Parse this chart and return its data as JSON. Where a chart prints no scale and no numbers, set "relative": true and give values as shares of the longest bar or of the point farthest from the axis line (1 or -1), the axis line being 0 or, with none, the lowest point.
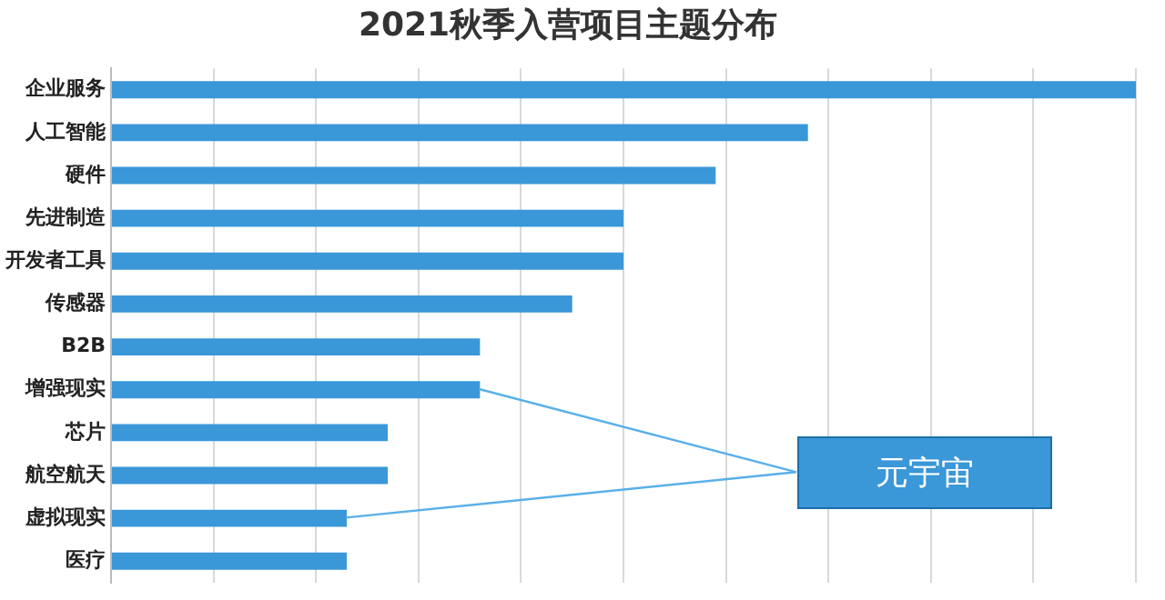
{
  "chart_data": {
    "type": "bar",
    "orientation": "horizontal",
    "relative": true,
    "title": "2021秋季入营项目主题分布",
    "categories": [
      "企业服务",
      "人工智能",
      "硬件",
      "先进制造",
      "开发者工具",
      "传感器",
      "B2B",
      "增强现实",
      "芯片",
      "航空航天",
      "虚拟现实",
      "医疗"
    ],
    "values": [
      1,
      0.68,
      0.59,
      0.5,
      0.5,
      0.45,
      0.36,
      0.36,
      0.27,
      0.27,
      0.23,
      0.23
    ],
    "color": "#3a97d8",
    "grid": "x",
    "annotations": [
      "元宇宙"
    ]
  }
}
